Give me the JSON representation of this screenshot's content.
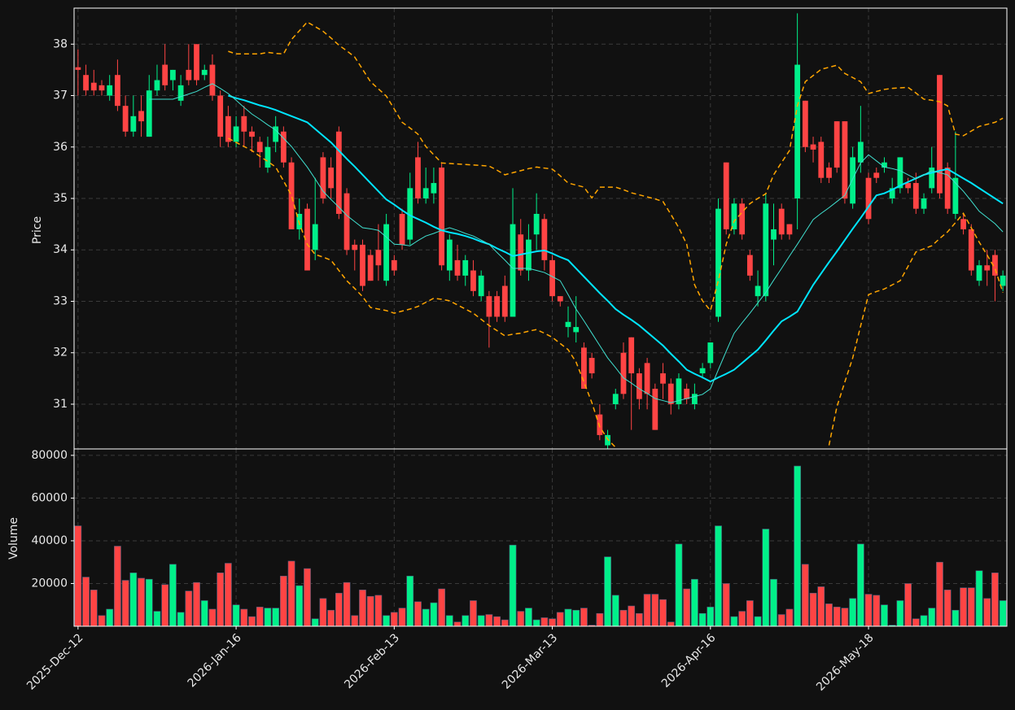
{
  "chart_data": {
    "type": "candlestick",
    "categories": [
      "2025-Dec-12",
      null,
      null,
      null,
      null,
      null,
      null,
      null,
      null,
      null,
      null,
      null,
      null,
      null,
      null,
      null,
      null,
      null,
      null,
      null,
      "2026-Jan-16",
      null,
      null,
      null,
      null,
      null,
      null,
      null,
      null,
      null,
      null,
      null,
      null,
      null,
      null,
      null,
      null,
      null,
      null,
      null,
      "2026-Feb-13",
      null,
      null,
      null,
      null,
      null,
      null,
      null,
      null,
      null,
      null,
      null,
      null,
      null,
      null,
      null,
      null,
      null,
      null,
      null,
      "2026-Mar-13",
      null,
      null,
      null,
      null,
      null,
      null,
      null,
      null,
      null,
      null,
      null,
      null,
      null,
      null,
      null,
      null,
      null,
      null,
      null,
      "2026-Apr-16",
      null,
      null,
      null,
      null,
      null,
      null,
      null,
      null,
      null,
      null,
      null,
      null,
      null,
      null,
      null,
      null,
      null,
      null,
      null,
      "2026-May-18",
      null,
      null,
      null,
      null,
      null,
      null,
      null,
      null,
      null,
      null,
      null,
      null,
      null,
      null,
      null,
      null,
      null
    ],
    "open": [
      37.55,
      37.4,
      37.25,
      37.2,
      37.0,
      37.4,
      36.8,
      36.3,
      36.7,
      36.2,
      37.1,
      37.6,
      37.3,
      36.9,
      37.5,
      38.0,
      37.4,
      37.6,
      37.0,
      36.6,
      36.1,
      36.6,
      36.3,
      36.1,
      35.6,
      36.1,
      36.3,
      35.7,
      34.4,
      34.8,
      34.0,
      35.8,
      35.6,
      36.3,
      35.1,
      34.1,
      34.1,
      33.9,
      34.0,
      33.4,
      33.8,
      34.7,
      34.2,
      35.8,
      35.0,
      35.1,
      35.6,
      33.6,
      33.8,
      33.5,
      33.6,
      33.1,
      33.1,
      33.1,
      33.3,
      32.7,
      34.3,
      33.6,
      34.3,
      34.6,
      33.8,
      33.1,
      32.5,
      32.4,
      32.1,
      31.9,
      30.8,
      30.2,
      31.0,
      32.0,
      32.3,
      31.6,
      31.8,
      31.3,
      31.6,
      31.4,
      31.0,
      31.3,
      31.0,
      31.6,
      31.8,
      32.7,
      35.7,
      34.4,
      34.9,
      33.9,
      33.1,
      33.1,
      34.2,
      34.8,
      34.5,
      35.0,
      36.9,
      36.05,
      36.1,
      35.6,
      36.5,
      36.5,
      34.9,
      35.7,
      35.4,
      35.5,
      35.6,
      35.0,
      35.2,
      35.3,
      35.3,
      34.8,
      35.2,
      37.4,
      35.6,
      34.7,
      34.6,
      34.4,
      33.4,
      33.7,
      33.9,
      33.3
    ],
    "high": [
      37.9,
      37.6,
      37.5,
      37.3,
      37.4,
      37.7,
      37.0,
      37.0,
      37.0,
      37.4,
      37.6,
      38.0,
      37.5,
      37.4,
      38.0,
      38.0,
      37.6,
      37.8,
      37.1,
      36.8,
      36.6,
      36.8,
      36.4,
      36.2,
      36.2,
      36.6,
      36.4,
      35.8,
      35.0,
      34.9,
      35.4,
      35.9,
      35.8,
      36.4,
      35.2,
      34.2,
      34.2,
      34.0,
      34.5,
      34.7,
      33.9,
      34.8,
      35.5,
      36.1,
      35.6,
      35.6,
      35.7,
      34.3,
      34.1,
      33.9,
      33.8,
      33.6,
      33.2,
      33.2,
      33.5,
      35.2,
      34.6,
      34.5,
      35.1,
      34.7,
      33.9,
      33.1,
      32.9,
      33.1,
      32.2,
      32.0,
      31.0,
      30.5,
      31.3,
      32.2,
      32.3,
      31.7,
      31.9,
      31.4,
      31.8,
      31.5,
      31.6,
      31.4,
      31.4,
      31.8,
      32.2,
      35.0,
      35.7,
      35.0,
      35.0,
      34.0,
      33.6,
      35.1,
      34.9,
      34.9,
      34.5,
      38.6,
      36.9,
      36.2,
      36.2,
      35.7,
      36.5,
      36.5,
      36.0,
      36.8,
      35.5,
      35.6,
      35.8,
      35.4,
      35.8,
      35.4,
      35.5,
      35.1,
      36.0,
      37.4,
      35.7,
      36.3,
      34.7,
      34.5,
      33.8,
      34.0,
      34.0,
      33.6
    ],
    "low": [
      37.0,
      37.0,
      37.0,
      37.0,
      36.9,
      36.7,
      36.2,
      36.2,
      36.2,
      36.2,
      37.0,
      37.1,
      37.1,
      36.8,
      37.2,
      37.2,
      37.3,
      36.9,
      36.0,
      36.0,
      36.0,
      36.0,
      35.9,
      35.6,
      35.5,
      35.9,
      35.6,
      34.4,
      34.2,
      33.6,
      33.8,
      34.9,
      35.0,
      34.6,
      33.9,
      33.6,
      33.2,
      33.4,
      33.4,
      33.3,
      33.5,
      34.0,
      34.1,
      34.9,
      34.9,
      34.9,
      33.6,
      33.4,
      33.4,
      33.3,
      33.1,
      33.0,
      32.1,
      32.6,
      32.6,
      32.7,
      33.5,
      33.4,
      34.0,
      33.6,
      33.0,
      32.9,
      32.3,
      32.2,
      31.3,
      31.5,
      30.3,
      30.1,
      30.9,
      31.1,
      30.5,
      30.9,
      30.9,
      30.5,
      31.1,
      30.8,
      30.9,
      31.0,
      30.9,
      31.5,
      31.7,
      32.6,
      34.3,
      34.3,
      34.2,
      33.4,
      32.9,
      33.0,
      33.7,
      34.2,
      34.2,
      34.4,
      35.9,
      35.7,
      35.3,
      35.3,
      35.5,
      34.9,
      34.8,
      35.5,
      34.5,
      35.3,
      35.5,
      34.9,
      35.1,
      35.1,
      34.7,
      34.7,
      35.1,
      35.0,
      34.7,
      34.6,
      34.3,
      33.5,
      33.3,
      33.3,
      33.0,
      33.2
    ],
    "close": [
      37.5,
      37.1,
      37.1,
      37.1,
      37.2,
      36.8,
      36.3,
      36.6,
      36.5,
      37.1,
      37.3,
      37.2,
      37.5,
      37.2,
      37.3,
      37.3,
      37.5,
      37.0,
      36.2,
      36.1,
      36.4,
      36.3,
      36.2,
      35.9,
      36.0,
      36.4,
      35.7,
      34.4,
      34.7,
      33.6,
      34.5,
      35.0,
      35.2,
      34.7,
      34.0,
      34.0,
      33.3,
      33.4,
      33.7,
      34.5,
      33.6,
      34.1,
      35.2,
      35.0,
      35.2,
      35.3,
      33.7,
      34.2,
      33.5,
      33.8,
      33.2,
      33.5,
      32.7,
      32.7,
      32.7,
      34.5,
      33.6,
      34.2,
      34.7,
      33.8,
      33.1,
      33.0,
      32.6,
      32.5,
      31.3,
      31.6,
      30.4,
      30.4,
      31.2,
      31.2,
      31.6,
      31.1,
      31.2,
      30.5,
      31.4,
      31.0,
      31.5,
      31.1,
      31.2,
      31.7,
      32.2,
      34.8,
      34.4,
      34.9,
      34.3,
      33.5,
      33.3,
      34.9,
      34.4,
      34.3,
      34.3,
      37.6,
      36.0,
      35.95,
      35.4,
      35.4,
      35.6,
      35.0,
      35.8,
      36.1,
      34.6,
      35.4,
      35.7,
      35.2,
      35.8,
      35.2,
      34.8,
      35.0,
      35.6,
      35.1,
      34.8,
      35.4,
      34.4,
      33.6,
      33.7,
      33.6,
      33.5,
      33.5
    ],
    "up_color": "#00f08a",
    "down_color": "#ff4444",
    "ylabel": "Price",
    "ylim": [
      30.13,
      38.7
    ],
    "yticks": [
      31,
      32,
      33,
      34,
      35,
      36,
      37,
      38
    ],
    "grid": true,
    "series": [
      {
        "color": "#00e5ff",
        "width": 2,
        "dash": false,
        "values": [
          null,
          null,
          null,
          null,
          null,
          null,
          null,
          null,
          null,
          null,
          null,
          null,
          null,
          null,
          null,
          null,
          null,
          null,
          null,
          37.0,
          36.95,
          36.91,
          36.86,
          36.81,
          36.77,
          36.72,
          36.66,
          36.6,
          36.54,
          36.48,
          36.35,
          36.22,
          36.09,
          35.93,
          35.77,
          35.62,
          35.46,
          35.3,
          35.14,
          34.98,
          34.88,
          34.77,
          34.67,
          34.6,
          34.53,
          34.45,
          34.38,
          34.34,
          34.31,
          34.27,
          34.22,
          34.16,
          34.11,
          34.03,
          33.96,
          33.88,
          33.91,
          33.94,
          33.97,
          33.99,
          33.93,
          33.86,
          33.8,
          33.64,
          33.48,
          33.32,
          33.16,
          33.01,
          32.85,
          32.74,
          32.64,
          32.53,
          32.4,
          32.27,
          32.14,
          31.98,
          31.83,
          31.67,
          31.59,
          31.52,
          31.44,
          31.52,
          31.59,
          31.67,
          31.8,
          31.93,
          32.06,
          32.24,
          32.43,
          32.61,
          32.7,
          32.8,
          33.06,
          33.32,
          33.54,
          33.76,
          33.97,
          34.19,
          34.41,
          34.62,
          34.84,
          35.06,
          35.1,
          35.17,
          35.25,
          35.32,
          35.39,
          35.46,
          35.5,
          35.54,
          35.57,
          35.48,
          35.39,
          35.3,
          35.2,
          35.1,
          35.0,
          34.9
        ]
      },
      {
        "color": "#40e0d0",
        "width": 1,
        "dash": false,
        "values": [
          null,
          null,
          null,
          null,
          null,
          null,
          null,
          null,
          null,
          36.93,
          36.93,
          36.93,
          36.93,
          36.98,
          37.03,
          37.08,
          37.16,
          37.23,
          37.14,
          37.04,
          36.91,
          36.77,
          36.64,
          36.54,
          36.43,
          36.33,
          36.17,
          36.01,
          35.81,
          35.61,
          35.38,
          35.14,
          34.98,
          34.83,
          34.67,
          34.55,
          34.43,
          34.41,
          34.38,
          34.25,
          34.11,
          34.1,
          34.08,
          34.18,
          34.27,
          34.32,
          34.38,
          34.43,
          34.38,
          34.32,
          34.27,
          34.19,
          34.11,
          33.95,
          33.8,
          33.64,
          33.64,
          33.64,
          33.6,
          33.56,
          33.48,
          33.4,
          33.13,
          32.85,
          32.62,
          32.38,
          32.14,
          31.9,
          31.71,
          31.51,
          31.41,
          31.3,
          31.21,
          31.11,
          31.07,
          31.03,
          31.07,
          31.11,
          31.15,
          31.19,
          31.3,
          31.67,
          32.03,
          32.38,
          32.58,
          32.77,
          32.97,
          33.17,
          33.41,
          33.64,
          33.88,
          34.11,
          34.35,
          34.59,
          34.71,
          34.82,
          34.94,
          35.06,
          35.38,
          35.69,
          35.85,
          35.73,
          35.61,
          35.58,
          35.54,
          35.46,
          35.38,
          35.46,
          35.54,
          35.5,
          35.46,
          35.3,
          35.14,
          34.95,
          34.75,
          34.63,
          34.51,
          34.35
        ]
      },
      {
        "color": "#ffa500",
        "width": 1.5,
        "dash": true,
        "values": [
          null,
          null,
          null,
          null,
          null,
          null,
          null,
          null,
          null,
          null,
          null,
          null,
          null,
          null,
          null,
          null,
          null,
          null,
          null,
          37.86,
          37.81,
          37.81,
          37.81,
          37.81,
          37.84,
          37.82,
          37.81,
          38.09,
          38.26,
          38.43,
          38.34,
          38.25,
          38.12,
          37.98,
          37.87,
          37.75,
          37.51,
          37.27,
          37.13,
          36.99,
          36.74,
          36.48,
          36.37,
          36.25,
          36.01,
          35.85,
          35.69,
          35.68,
          35.67,
          35.66,
          35.65,
          35.64,
          35.63,
          35.55,
          35.46,
          35.5,
          35.54,
          35.58,
          35.61,
          35.59,
          35.57,
          35.44,
          35.3,
          35.26,
          35.22,
          35.01,
          35.22,
          35.22,
          35.22,
          35.17,
          35.11,
          35.07,
          35.03,
          34.99,
          34.94,
          34.69,
          34.43,
          34.11,
          33.32,
          33.01,
          32.82,
          33.4,
          34.11,
          34.56,
          34.73,
          34.9,
          35.0,
          35.09,
          35.46,
          35.7,
          35.93,
          36.8,
          37.27,
          37.39,
          37.51,
          37.55,
          37.59,
          37.43,
          37.35,
          37.27,
          37.04,
          37.08,
          37.12,
          37.14,
          37.15,
          37.16,
          37.05,
          36.93,
          36.91,
          36.88,
          36.8,
          36.25,
          36.22,
          36.31,
          36.4,
          36.44,
          36.48,
          36.56
        ]
      },
      {
        "color": "#ffa500",
        "width": 1.5,
        "dash": true,
        "values": [
          null,
          null,
          null,
          null,
          null,
          null,
          null,
          null,
          null,
          null,
          null,
          null,
          null,
          null,
          null,
          null,
          null,
          null,
          null,
          36.17,
          36.09,
          36.01,
          35.93,
          35.82,
          35.72,
          35.61,
          35.34,
          35.06,
          34.51,
          34.11,
          33.91,
          33.86,
          33.8,
          33.6,
          33.4,
          33.25,
          33.09,
          32.88,
          32.85,
          32.82,
          32.77,
          32.81,
          32.85,
          32.9,
          32.98,
          33.06,
          33.04,
          33.01,
          32.93,
          32.85,
          32.77,
          32.65,
          32.53,
          32.43,
          32.33,
          32.36,
          32.38,
          32.42,
          32.45,
          32.38,
          32.3,
          32.18,
          32.06,
          31.82,
          31.43,
          31.03,
          30.56,
          30.32,
          30.16,
          null,
          null,
          null,
          null,
          null,
          null,
          null,
          null,
          null,
          null,
          null,
          null,
          null,
          null,
          null,
          null,
          null,
          null,
          null,
          null,
          null,
          null,
          null,
          null,
          null,
          null,
          30.2,
          30.95,
          31.43,
          31.9,
          32.52,
          33.13,
          33.19,
          33.24,
          33.32,
          33.4,
          33.68,
          33.96,
          34.02,
          34.08,
          34.22,
          34.35,
          34.53,
          34.71,
          34.43,
          34.15,
          33.9,
          33.64,
          33.17
        ]
      }
    ],
    "volume": {
      "ylabel": "Volume",
      "ylim": [
        0,
        83000
      ],
      "yticks": [
        20000,
        40000,
        60000,
        80000
      ],
      "values": [
        47000,
        23000,
        17000,
        5000,
        8000,
        37500,
        21500,
        25000,
        22500,
        22000,
        7000,
        19500,
        29000,
        6500,
        16500,
        20500,
        12000,
        8000,
        25000,
        29500,
        10000,
        8000,
        4500,
        9000,
        8500,
        8500,
        23500,
        30500,
        19000,
        27000,
        3500,
        13000,
        7500,
        15500,
        20500,
        5000,
        17000,
        14000,
        14500,
        5000,
        6500,
        8500,
        23500,
        11500,
        8000,
        11000,
        17500,
        5000,
        2000,
        5000,
        12000,
        5000,
        5500,
        4500,
        3000,
        38000,
        7000,
        8500,
        3000,
        4000,
        3500,
        6500,
        8000,
        7500,
        8500,
        500,
        6000,
        32500,
        14500,
        7500,
        9500,
        6000,
        15000,
        15000,
        12500,
        2000,
        38500,
        17500,
        22000,
        6000,
        9000,
        47000,
        20000,
        4500,
        7000,
        12000,
        4500,
        45500,
        22000,
        5500,
        8000,
        75000,
        29000,
        15500,
        18500,
        10500,
        9000,
        8500,
        13000,
        38500,
        15000,
        14500,
        10000,
        500,
        12000,
        20000,
        3500,
        5000,
        8500,
        30000,
        17000,
        7500,
        18000,
        18000,
        26000,
        13000,
        25000,
        12000
      ]
    }
  }
}
